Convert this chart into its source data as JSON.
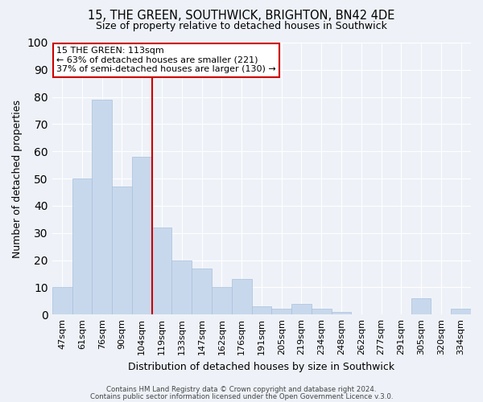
{
  "title": "15, THE GREEN, SOUTHWICK, BRIGHTON, BN42 4DE",
  "subtitle": "Size of property relative to detached houses in Southwick",
  "xlabel": "Distribution of detached houses by size in Southwick",
  "ylabel": "Number of detached properties",
  "bar_labels": [
    "47sqm",
    "61sqm",
    "76sqm",
    "90sqm",
    "104sqm",
    "119sqm",
    "133sqm",
    "147sqm",
    "162sqm",
    "176sqm",
    "191sqm",
    "205sqm",
    "219sqm",
    "234sqm",
    "248sqm",
    "262sqm",
    "277sqm",
    "291sqm",
    "305sqm",
    "320sqm",
    "334sqm"
  ],
  "bar_values": [
    10,
    50,
    79,
    47,
    58,
    32,
    20,
    17,
    10,
    13,
    3,
    2,
    4,
    2,
    1,
    0,
    0,
    0,
    6,
    0,
    2
  ],
  "bar_color": "#c8d8ec",
  "bar_edge_color": "#a8c0dc",
  "bg_color": "#eef2f8",
  "grid_color": "#ffffff",
  "vline_x_index": 4.5,
  "vline_color": "#cc0000",
  "ylim": [
    0,
    100
  ],
  "yticks": [
    0,
    10,
    20,
    30,
    40,
    50,
    60,
    70,
    80,
    90,
    100
  ],
  "annotation_title": "15 THE GREEN: 113sqm",
  "annotation_line1": "← 63% of detached houses are smaller (221)",
  "annotation_line2": "37% of semi-detached houses are larger (130) →",
  "annotation_box_color": "#ffffff",
  "annotation_box_edge": "#cc0000",
  "footer1": "Contains HM Land Registry data © Crown copyright and database right 2024.",
  "footer2": "Contains public sector information licensed under the Open Government Licence v.3.0."
}
